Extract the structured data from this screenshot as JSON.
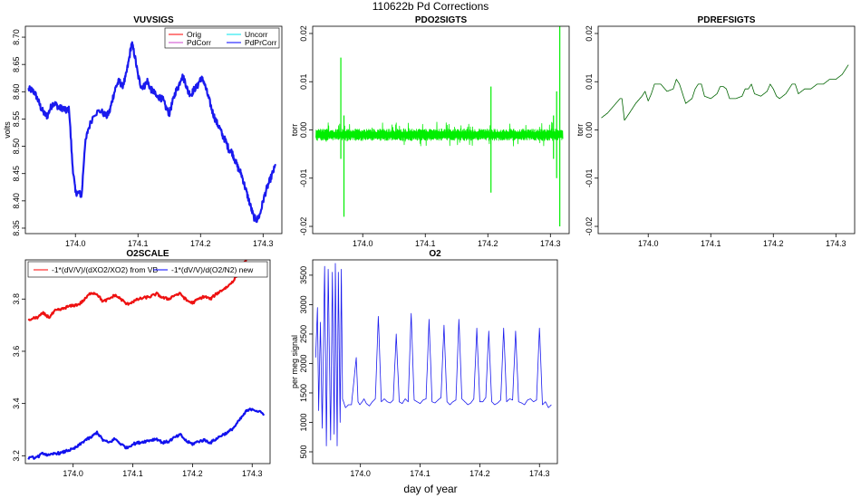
{
  "figure": {
    "title": "110622b   Pd Corrections",
    "xlabel": "day of year"
  },
  "chart_data": [
    {
      "id": "vuvsigs",
      "type": "line",
      "title": "VUVSIGS",
      "ylabel": "volts",
      "xlim": [
        173.92,
        174.33
      ],
      "ylim": [
        8.34,
        8.72
      ],
      "xticks": [
        174.0,
        174.1,
        174.2,
        174.3
      ],
      "xtick_labels": [
        "174.0",
        "174.1",
        "174.2",
        "174.3"
      ],
      "yticks": [
        8.35,
        8.4,
        8.45,
        8.5,
        8.55,
        8.6,
        8.65,
        8.7
      ],
      "ytick_labels": [
        "8.35",
        "8.40",
        "8.45",
        "8.50",
        "8.55",
        "8.60",
        "8.65",
        "8.70"
      ],
      "legend": {
        "position": "top-right",
        "entries": [
          {
            "label": "Orig",
            "color": "#ff0000"
          },
          {
            "label": "Uncorr",
            "color": "#00e5ee"
          },
          {
            "label": "PdCorr",
            "color": "#cc44cc"
          },
          {
            "label": "PdPrCorr",
            "color": "#0000ff"
          }
        ]
      },
      "series": [
        {
          "name": "PdPrCorr",
          "color": "#1a1aee",
          "band": 0.012,
          "x": [
            173.925,
            173.93,
            173.935,
            173.94,
            173.945,
            173.95,
            173.955,
            173.96,
            173.965,
            173.97,
            173.975,
            173.98,
            173.985,
            173.99,
            173.995,
            174.0,
            174.005,
            174.01,
            174.015,
            174.02,
            174.03,
            174.04,
            174.05,
            174.055,
            174.06,
            174.065,
            174.07,
            174.075,
            174.08,
            174.085,
            174.09,
            174.095,
            174.1,
            174.105,
            174.11,
            174.115,
            174.12,
            174.125,
            174.13,
            174.135,
            174.14,
            174.145,
            174.15,
            174.155,
            174.16,
            174.165,
            174.17,
            174.175,
            174.18,
            174.185,
            174.19,
            174.195,
            174.2,
            174.205,
            174.21,
            174.215,
            174.22,
            174.225,
            174.23,
            174.235,
            174.24,
            174.245,
            174.25,
            174.255,
            174.26,
            174.265,
            174.27,
            174.275,
            174.28,
            174.285,
            174.29,
            174.295,
            174.3,
            174.305,
            174.31,
            174.315,
            174.32
          ],
          "y": [
            8.605,
            8.603,
            8.598,
            8.585,
            8.57,
            8.56,
            8.555,
            8.57,
            8.58,
            8.575,
            8.57,
            8.57,
            8.565,
            8.568,
            8.47,
            8.415,
            8.415,
            8.41,
            8.5,
            8.53,
            8.56,
            8.565,
            8.555,
            8.565,
            8.59,
            8.61,
            8.62,
            8.61,
            8.625,
            8.655,
            8.69,
            8.665,
            8.63,
            8.61,
            8.61,
            8.62,
            8.605,
            8.6,
            8.59,
            8.59,
            8.585,
            8.57,
            8.56,
            8.58,
            8.6,
            8.61,
            8.63,
            8.62,
            8.6,
            8.595,
            8.605,
            8.61,
            8.625,
            8.62,
            8.6,
            8.58,
            8.56,
            8.545,
            8.535,
            8.52,
            8.51,
            8.495,
            8.49,
            8.475,
            8.46,
            8.45,
            8.43,
            8.41,
            8.39,
            8.37,
            8.365,
            8.375,
            8.4,
            8.42,
            8.435,
            8.45,
            8.465
          ]
        }
      ]
    },
    {
      "id": "pdo2sigts",
      "type": "line",
      "title": "PDO2SIGTS",
      "ylabel": "torr",
      "xlim": [
        173.92,
        174.33
      ],
      "ylim": [
        -0.0215,
        0.0215
      ],
      "xticks": [
        174.0,
        174.1,
        174.2,
        174.3
      ],
      "xtick_labels": [
        "174.0",
        "174.1",
        "174.2",
        "174.3"
      ],
      "yticks": [
        -0.02,
        -0.01,
        0.0,
        0.01,
        0.02
      ],
      "ytick_labels": [
        "-0.02",
        "-0.01",
        "0.00",
        "0.01",
        "0.02"
      ],
      "series": [
        {
          "name": "PDO2SIGTS",
          "color": "#00ee00",
          "baseline": -0.001,
          "noise_amplitude": 0.0012,
          "spikes": [
            {
              "x": 173.965,
              "hi": 0.015,
              "lo": -0.006
            },
            {
              "x": 173.97,
              "hi": 0.003,
              "lo": -0.018
            },
            {
              "x": 174.205,
              "hi": 0.009,
              "lo": -0.013
            },
            {
              "x": 174.305,
              "hi": 0.003,
              "lo": -0.006
            },
            {
              "x": 174.31,
              "hi": 0.008,
              "lo": -0.01
            },
            {
              "x": 174.315,
              "hi": 0.022,
              "lo": -0.02
            }
          ]
        }
      ]
    },
    {
      "id": "pdrefsigts",
      "type": "line",
      "title": "PDREFSIGTS",
      "ylabel": "torr",
      "xlim": [
        173.92,
        174.33
      ],
      "ylim": [
        -0.0215,
        0.0215
      ],
      "xticks": [
        174.0,
        174.1,
        174.2,
        174.3
      ],
      "xtick_labels": [
        "174.0",
        "174.1",
        "174.2",
        "174.3"
      ],
      "yticks": [
        -0.02,
        -0.01,
        0.0,
        0.01,
        0.02
      ],
      "ytick_labels": [
        "-0.02",
        "-0.01",
        "0.00",
        "0.01",
        "0.02"
      ],
      "series": [
        {
          "name": "PDREFSIGTS",
          "color": "#006400",
          "x": [
            173.925,
            173.935,
            173.945,
            173.955,
            173.958,
            173.962,
            173.97,
            173.98,
            173.99,
            173.995,
            174.0,
            174.005,
            174.01,
            174.02,
            174.03,
            174.04,
            174.045,
            174.05,
            174.06,
            174.07,
            174.075,
            174.08,
            174.085,
            174.09,
            174.1,
            174.11,
            174.115,
            174.12,
            174.125,
            174.13,
            174.14,
            174.15,
            174.155,
            174.16,
            174.165,
            174.17,
            174.18,
            174.19,
            174.195,
            174.2,
            174.205,
            174.21,
            174.22,
            174.23,
            174.235,
            174.24,
            174.25,
            174.26,
            174.27,
            174.275,
            174.28,
            174.29,
            174.3,
            174.31,
            174.315,
            174.32
          ],
          "y": [
            0.0025,
            0.0035,
            0.005,
            0.0065,
            0.0065,
            0.002,
            0.0035,
            0.0055,
            0.007,
            0.008,
            0.006,
            0.0075,
            0.0095,
            0.0095,
            0.008,
            0.0085,
            0.0105,
            0.0095,
            0.0055,
            0.0065,
            0.0085,
            0.0095,
            0.0095,
            0.007,
            0.0065,
            0.0075,
            0.009,
            0.009,
            0.0085,
            0.0065,
            0.0065,
            0.007,
            0.0085,
            0.0085,
            0.0095,
            0.0075,
            0.007,
            0.008,
            0.0095,
            0.0085,
            0.007,
            0.0065,
            0.0075,
            0.0095,
            0.0095,
            0.0075,
            0.0085,
            0.0085,
            0.0095,
            0.0095,
            0.0095,
            0.0105,
            0.0105,
            0.0115,
            0.0125,
            0.0135
          ]
        }
      ]
    },
    {
      "id": "o2scale",
      "type": "line",
      "title": "O2SCALE",
      "ylabel": "",
      "xlim": [
        173.92,
        174.33
      ],
      "ylim": [
        3.17,
        3.95
      ],
      "xticks": [
        174.0,
        174.1,
        174.2,
        174.3
      ],
      "xtick_labels": [
        "174.0",
        "174.1",
        "174.2",
        "174.3"
      ],
      "yticks": [
        3.2,
        3.4,
        3.6,
        3.8
      ],
      "ytick_labels": [
        "3.2",
        "3.4",
        "3.6",
        "3.8"
      ],
      "legend": {
        "position": "top",
        "entries": [
          {
            "label": "-1*(dV/V)/(dXO2/XO2) from VB",
            "color": "#ff0000"
          },
          {
            "label": "-1*(dV/V)/d(O2/N2) new",
            "color": "#0000ff"
          }
        ]
      },
      "series": [
        {
          "name": "-1*(dV/V)/(dXO2/XO2) from VB",
          "color": "#ee1111",
          "band": 0.01,
          "x": [
            173.925,
            173.94,
            173.95,
            173.96,
            173.97,
            173.98,
            173.99,
            174.0,
            174.01,
            174.02,
            174.03,
            174.04,
            174.05,
            174.06,
            174.07,
            174.08,
            174.09,
            174.1,
            174.11,
            174.12,
            174.13,
            174.14,
            174.15,
            174.16,
            174.17,
            174.18,
            174.19,
            174.2,
            174.21,
            174.22,
            174.23,
            174.24,
            174.25,
            174.26,
            174.27,
            174.28,
            174.29
          ],
          "y": [
            3.72,
            3.73,
            3.745,
            3.73,
            3.755,
            3.76,
            3.77,
            3.775,
            3.78,
            3.8,
            3.825,
            3.82,
            3.79,
            3.8,
            3.815,
            3.8,
            3.78,
            3.79,
            3.8,
            3.805,
            3.81,
            3.82,
            3.805,
            3.8,
            3.815,
            3.82,
            3.795,
            3.785,
            3.8,
            3.81,
            3.8,
            3.82,
            3.835,
            3.85,
            3.875,
            3.91,
            3.95
          ]
        },
        {
          "name": "-1*(dV/V)/d(O2/N2) new",
          "color": "#1111ee",
          "band": 0.01,
          "x": [
            173.925,
            173.94,
            173.95,
            173.96,
            173.97,
            173.98,
            173.99,
            174.0,
            174.01,
            174.02,
            174.03,
            174.04,
            174.05,
            174.06,
            174.07,
            174.08,
            174.09,
            174.1,
            174.11,
            174.12,
            174.13,
            174.14,
            174.15,
            174.16,
            174.17,
            174.18,
            174.19,
            174.2,
            174.21,
            174.22,
            174.23,
            174.24,
            174.25,
            174.26,
            174.27,
            174.28,
            174.29,
            174.3,
            174.31,
            174.32
          ],
          "y": [
            3.19,
            3.195,
            3.21,
            3.2,
            3.21,
            3.21,
            3.22,
            3.225,
            3.24,
            3.26,
            3.27,
            3.29,
            3.26,
            3.25,
            3.265,
            3.245,
            3.23,
            3.245,
            3.25,
            3.255,
            3.26,
            3.265,
            3.25,
            3.255,
            3.27,
            3.28,
            3.255,
            3.245,
            3.255,
            3.26,
            3.25,
            3.265,
            3.28,
            3.29,
            3.31,
            3.34,
            3.37,
            3.38,
            3.37,
            3.36
          ]
        }
      ]
    },
    {
      "id": "o2",
      "type": "line",
      "title": "O2",
      "ylabel": "per meg signal",
      "xlim": [
        173.92,
        174.33
      ],
      "ylim": [
        300,
        3760
      ],
      "xticks": [
        174.0,
        174.1,
        174.2,
        174.3
      ],
      "xtick_labels": [
        "174.0",
        "174.1",
        "174.2",
        "174.3"
      ],
      "yticks": [
        500,
        1000,
        1500,
        2000,
        2500,
        3000,
        3500
      ],
      "ytick_labels": [
        "500",
        "1000",
        "1500",
        "2000",
        "2500",
        "3000",
        "3500"
      ],
      "series": [
        {
          "name": "O2",
          "color": "#1a1aee",
          "x": [
            173.925,
            173.928,
            173.93,
            173.933,
            173.936,
            173.94,
            173.943,
            173.946,
            173.95,
            173.953,
            173.956,
            173.958,
            173.961,
            173.963,
            173.966,
            173.968,
            173.97,
            173.975,
            173.98,
            173.985,
            173.99,
            173.993,
            173.996,
            173.999,
            174.003,
            174.006,
            174.01,
            174.015,
            174.02,
            174.025,
            174.03,
            174.035,
            174.04,
            174.045,
            174.05,
            174.055,
            174.06,
            174.065,
            174.07,
            174.075,
            174.08,
            174.085,
            174.09,
            174.095,
            174.1,
            174.105,
            174.11,
            174.115,
            174.12,
            174.125,
            174.13,
            174.135,
            174.14,
            174.145,
            174.15,
            174.155,
            174.16,
            174.165,
            174.17,
            174.175,
            174.18,
            174.185,
            174.19,
            174.195,
            174.2,
            174.205,
            174.21,
            174.215,
            174.22,
            174.225,
            174.23,
            174.235,
            174.24,
            174.245,
            174.25,
            174.255,
            174.26,
            174.265,
            174.27,
            174.275,
            174.28,
            174.285,
            174.29,
            174.295,
            174.3,
            174.305,
            174.31,
            174.315,
            174.32
          ],
          "y": [
            2100,
            2950,
            1200,
            2700,
            900,
            3650,
            600,
            3600,
            700,
            3550,
            800,
            3700,
            600,
            3550,
            1000,
            3600,
            1400,
            1250,
            1300,
            1300,
            1800,
            2100,
            1350,
            1300,
            1350,
            1400,
            1320,
            1280,
            1350,
            1400,
            2800,
            1350,
            1400,
            1350,
            1330,
            1380,
            2500,
            1350,
            1320,
            1400,
            1350,
            2850,
            1380,
            1350,
            1320,
            1380,
            1400,
            2750,
            1350,
            1330,
            1380,
            1420,
            2650,
            1350,
            1300,
            1350,
            1380,
            2750,
            1400,
            1350,
            1300,
            1330,
            1400,
            2600,
            1350,
            1350,
            1420,
            2550,
            1350,
            1300,
            1330,
            1380,
            2600,
            1350,
            1400,
            1380,
            2550,
            1350,
            1330,
            1300,
            1380,
            1400,
            1350,
            1380,
            2600,
            1300,
            1350,
            1250,
            1300
          ]
        }
      ]
    }
  ]
}
